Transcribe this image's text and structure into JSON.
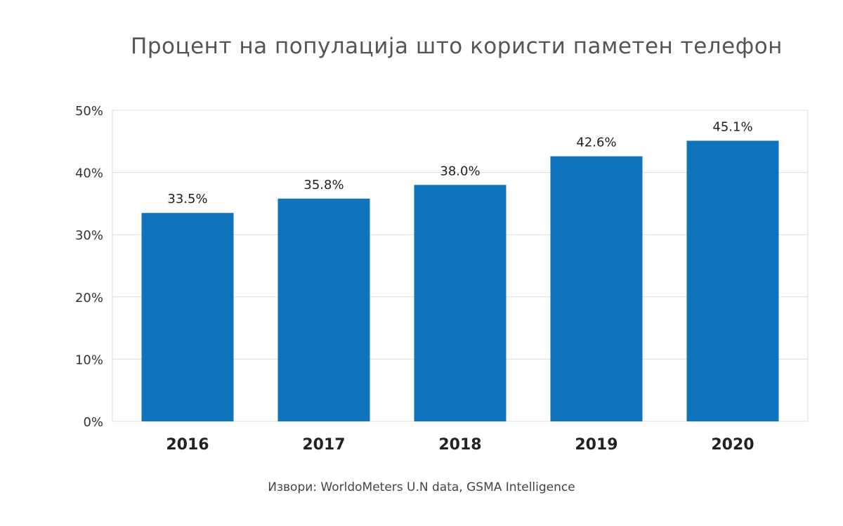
{
  "chart_data": {
    "type": "bar",
    "title": "Процент на популација што користи паметен телефон",
    "source": "Извори: WorldoMeters U.N data, GSMA Intelligence",
    "categories": [
      "2016",
      "2017",
      "2018",
      "2019",
      "2020"
    ],
    "values": [
      33.5,
      35.8,
      38.0,
      42.6,
      45.1
    ],
    "data_labels": [
      "33.5%",
      "35.8%",
      "38.0%",
      "42.6%",
      "45.1%"
    ],
    "yticks": [
      "0%",
      "10%",
      "20%",
      "30%",
      "40%",
      "50%"
    ],
    "ylim": [
      0,
      50
    ],
    "grid": true,
    "bar_color": "#1074bd",
    "xlabel": "",
    "ylabel": ""
  }
}
